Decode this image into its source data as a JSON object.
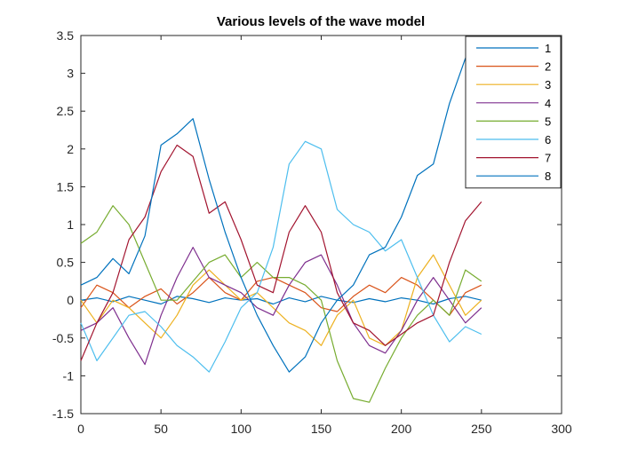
{
  "chart_data": {
    "type": "line",
    "title": "Various levels of the wave model",
    "xlabel": "",
    "ylabel": "",
    "xlim": [
      0,
      300
    ],
    "ylim": [
      -1.5,
      3.5
    ],
    "xticks": [
      0,
      50,
      100,
      150,
      200,
      250,
      300
    ],
    "yticks": [
      -1.5,
      -1,
      -0.5,
      0,
      0.5,
      1,
      1.5,
      2,
      2.5,
      3,
      3.5
    ],
    "xtick_labels": [
      "0",
      "50",
      "100",
      "150",
      "200",
      "250",
      "300"
    ],
    "ytick_labels": [
      "-1.5",
      "-1",
      "-0.5",
      "0",
      "0.5",
      "1",
      "1.5",
      "2",
      "2.5",
      "3",
      "3.5"
    ],
    "grid": false,
    "legend_position": "top-right",
    "series": [
      {
        "name": "1",
        "color": "#0072BD",
        "x": [
          0,
          10,
          20,
          30,
          40,
          50,
          60,
          70,
          80,
          90,
          100,
          110,
          120,
          130,
          140,
          150,
          160,
          170,
          180,
          190,
          200,
          210,
          220,
          230,
          240,
          250
        ],
        "y": [
          0,
          0.03,
          -0.02,
          0.05,
          0,
          -0.05,
          0.05,
          0.02,
          -0.03,
          0.03,
          0,
          0.02,
          -0.05,
          0.03,
          -0.02,
          0.05,
          0,
          -0.03,
          0.02,
          -0.02,
          0.03,
          0,
          -0.05,
          0.02,
          0.05,
          0
        ]
      },
      {
        "name": "2",
        "color": "#D95319",
        "x": [
          0,
          10,
          20,
          30,
          40,
          50,
          60,
          70,
          80,
          90,
          100,
          110,
          120,
          130,
          140,
          150,
          160,
          170,
          180,
          190,
          200,
          210,
          220,
          230,
          240,
          250
        ],
        "y": [
          -0.1,
          0.2,
          0.1,
          -0.1,
          0.05,
          0.15,
          -0.05,
          0.1,
          0.3,
          0.1,
          0,
          0.25,
          0.3,
          0.2,
          0.1,
          -0.1,
          -0.15,
          0.05,
          0.2,
          0.1,
          0.3,
          0.2,
          0,
          -0.2,
          0.1,
          0.2
        ]
      },
      {
        "name": "3",
        "color": "#EDB120",
        "x": [
          0,
          10,
          20,
          30,
          40,
          50,
          60,
          70,
          80,
          90,
          100,
          110,
          120,
          130,
          140,
          150,
          160,
          170,
          180,
          190,
          200,
          210,
          220,
          230,
          240,
          250
        ],
        "y": [
          0,
          -0.3,
          0,
          -0.1,
          -0.3,
          -0.5,
          -0.2,
          0.2,
          0.4,
          0.2,
          0,
          0.1,
          -0.1,
          -0.3,
          -0.4,
          -0.6,
          -0.2,
          0,
          -0.5,
          -0.6,
          -0.4,
          0.3,
          0.6,
          0.2,
          -0.2,
          0
        ]
      },
      {
        "name": "4",
        "color": "#7E2F8E",
        "x": [
          0,
          10,
          20,
          30,
          40,
          50,
          60,
          70,
          80,
          90,
          100,
          110,
          120,
          130,
          140,
          150,
          160,
          170,
          180,
          190,
          200,
          210,
          220,
          230,
          240,
          250
        ],
        "y": [
          -0.4,
          -0.3,
          -0.1,
          -0.5,
          -0.85,
          -0.2,
          0.3,
          0.7,
          0.3,
          0.2,
          0.1,
          -0.1,
          -0.2,
          0.2,
          0.5,
          0.6,
          0.2,
          -0.3,
          -0.6,
          -0.7,
          -0.4,
          0,
          0.3,
          0,
          -0.3,
          -0.1
        ]
      },
      {
        "name": "5",
        "color": "#77AC30",
        "x": [
          0,
          10,
          20,
          30,
          40,
          50,
          60,
          70,
          80,
          90,
          100,
          110,
          120,
          130,
          140,
          150,
          160,
          170,
          180,
          190,
          200,
          210,
          220,
          230,
          240,
          250
        ],
        "y": [
          0.75,
          0.9,
          1.25,
          1.0,
          0.5,
          0.0,
          0.0,
          0.25,
          0.5,
          0.6,
          0.3,
          0.5,
          0.3,
          0.3,
          0.2,
          0.0,
          -0.8,
          -1.3,
          -1.35,
          -0.9,
          -0.5,
          -0.2,
          0,
          -0.2,
          0.4,
          0.25
        ]
      },
      {
        "name": "6",
        "color": "#4DBEEE",
        "x": [
          0,
          10,
          20,
          30,
          40,
          50,
          60,
          70,
          80,
          90,
          100,
          110,
          120,
          130,
          140,
          150,
          160,
          170,
          180,
          190,
          200,
          210,
          220,
          230,
          240,
          250
        ],
        "y": [
          -0.3,
          -0.8,
          -0.5,
          -0.2,
          -0.15,
          -0.35,
          -0.6,
          -0.75,
          -0.95,
          -0.55,
          -0.1,
          0.1,
          0.7,
          1.8,
          2.1,
          2.0,
          1.2,
          1.0,
          0.9,
          0.65,
          0.8,
          0.3,
          -0.2,
          -0.55,
          -0.35,
          -0.45
        ]
      },
      {
        "name": "7",
        "color": "#A2142F",
        "x": [
          0,
          10,
          20,
          30,
          40,
          50,
          60,
          70,
          80,
          90,
          100,
          110,
          120,
          130,
          140,
          150,
          160,
          170,
          180,
          190,
          200,
          210,
          220,
          230,
          240,
          250
        ],
        "y": [
          -0.8,
          -0.3,
          0.1,
          0.8,
          1.1,
          1.7,
          2.05,
          1.9,
          1.15,
          1.3,
          0.8,
          0.2,
          0.1,
          0.9,
          1.25,
          0.9,
          0.1,
          -0.3,
          -0.4,
          -0.6,
          -0.45,
          -0.3,
          -0.2,
          0.5,
          1.05,
          1.3
        ]
      },
      {
        "name": "8",
        "color": "#0072BD",
        "x": [
          0,
          10,
          20,
          30,
          40,
          50,
          60,
          70,
          80,
          90,
          100,
          110,
          120,
          130,
          140,
          150,
          160,
          170,
          180,
          190,
          200,
          210,
          220,
          230,
          240,
          250
        ],
        "y": [
          0.2,
          0.3,
          0.55,
          0.35,
          0.85,
          2.05,
          2.2,
          2.4,
          1.6,
          0.9,
          0.3,
          -0.2,
          -0.6,
          -0.95,
          -0.75,
          -0.3,
          0.0,
          0.2,
          0.6,
          0.7,
          1.1,
          1.65,
          1.8,
          2.6,
          3.2,
          3.25
        ]
      }
    ]
  }
}
